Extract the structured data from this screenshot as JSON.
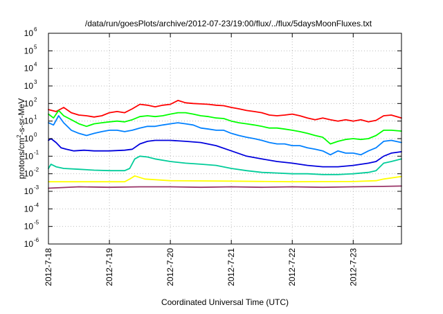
{
  "chart_data": {
    "type": "line",
    "title": "/data/run/goesPlots/archive/2012-07-23/19:00/flux/../flux/5daysMoonFluxes.txt",
    "xlabel": "Coordinated Universal Time (UTC)",
    "ylabel": {
      "prefix": "protons/cm",
      "exp": "2",
      "suffix": "-s-sr-MeV"
    },
    "x_ticks": [
      "2012-7-18",
      "2012-7-19",
      "2012-7-20",
      "2012-7-21",
      "2012-7-22",
      "2012-7-23"
    ],
    "xlim": [
      "2012-07-18T00:00",
      "2012-07-23T19:00"
    ],
    "y_ticks": [
      {
        "base": "10",
        "exp": "-6"
      },
      {
        "base": "10",
        "exp": "-5"
      },
      {
        "base": "10",
        "exp": "-4"
      },
      {
        "base": "10",
        "exp": "-3"
      },
      {
        "base": "10",
        "exp": "-2"
      },
      {
        "base": "10",
        "exp": "-1"
      },
      {
        "base": "10",
        "exp": "0"
      },
      {
        "base": "10",
        "exp": "1"
      },
      {
        "base": "10",
        "exp": "2"
      },
      {
        "base": "10",
        "exp": "3"
      },
      {
        "base": "10",
        "exp": "4"
      },
      {
        "base": "10",
        "exp": "5"
      },
      {
        "base": "10",
        "exp": "6"
      }
    ],
    "ylim": [
      1e-06,
      1000000.0
    ],
    "y_scale": "log",
    "grid": true,
    "legend": "none",
    "series": [
      {
        "color": "#ff0000",
        "points": [
          [
            "2012-07-18T00:00",
            45
          ],
          [
            "2012-07-18T03:00",
            35
          ],
          [
            "2012-07-18T06:00",
            60
          ],
          [
            "2012-07-18T09:00",
            30
          ],
          [
            "2012-07-18T12:00",
            22
          ],
          [
            "2012-07-18T15:00",
            20
          ],
          [
            "2012-07-18T18:00",
            17
          ],
          [
            "2012-07-18T21:00",
            20
          ],
          [
            "2012-07-19T00:00",
            30
          ],
          [
            "2012-07-19T03:00",
            35
          ],
          [
            "2012-07-19T06:00",
            30
          ],
          [
            "2012-07-19T09:00",
            50
          ],
          [
            "2012-07-19T12:00",
            90
          ],
          [
            "2012-07-19T15:00",
            80
          ],
          [
            "2012-07-19T18:00",
            65
          ],
          [
            "2012-07-19T21:00",
            80
          ],
          [
            "2012-07-20T00:00",
            90
          ],
          [
            "2012-07-20T03:00",
            150
          ],
          [
            "2012-07-20T06:00",
            110
          ],
          [
            "2012-07-20T09:00",
            100
          ],
          [
            "2012-07-20T12:00",
            95
          ],
          [
            "2012-07-20T15:00",
            90
          ],
          [
            "2012-07-20T18:00",
            80
          ],
          [
            "2012-07-20T21:00",
            75
          ],
          [
            "2012-07-21T00:00",
            60
          ],
          [
            "2012-07-21T03:00",
            50
          ],
          [
            "2012-07-21T06:00",
            40
          ],
          [
            "2012-07-21T09:00",
            35
          ],
          [
            "2012-07-21T12:00",
            30
          ],
          [
            "2012-07-21T15:00",
            22
          ],
          [
            "2012-07-21T18:00",
            20
          ],
          [
            "2012-07-21T21:00",
            22
          ],
          [
            "2012-07-22T00:00",
            25
          ],
          [
            "2012-07-22T03:00",
            20
          ],
          [
            "2012-07-22T06:00",
            15
          ],
          [
            "2012-07-22T09:00",
            12
          ],
          [
            "2012-07-22T12:00",
            15
          ],
          [
            "2012-07-22T15:00",
            12
          ],
          [
            "2012-07-22T18:00",
            10
          ],
          [
            "2012-07-22T21:00",
            12
          ],
          [
            "2012-07-23T00:00",
            10
          ],
          [
            "2012-07-23T03:00",
            12
          ],
          [
            "2012-07-23T06:00",
            9
          ],
          [
            "2012-07-23T09:00",
            11
          ],
          [
            "2012-07-23T12:00",
            20
          ],
          [
            "2012-07-23T15:00",
            22
          ],
          [
            "2012-07-23T19:00",
            15
          ]
        ]
      },
      {
        "color": "#00ff00",
        "points": [
          [
            "2012-07-18T00:00",
            25
          ],
          [
            "2012-07-18T02:00",
            15
          ],
          [
            "2012-07-18T04:00",
            40
          ],
          [
            "2012-07-18T06:00",
            20
          ],
          [
            "2012-07-18T09:00",
            12
          ],
          [
            "2012-07-18T12:00",
            7
          ],
          [
            "2012-07-18T15:00",
            5
          ],
          [
            "2012-07-18T18:00",
            7
          ],
          [
            "2012-07-18T21:00",
            8
          ],
          [
            "2012-07-19T00:00",
            9
          ],
          [
            "2012-07-19T03:00",
            10
          ],
          [
            "2012-07-19T06:00",
            9
          ],
          [
            "2012-07-19T09:00",
            12
          ],
          [
            "2012-07-19T12:00",
            18
          ],
          [
            "2012-07-19T15:00",
            20
          ],
          [
            "2012-07-19T18:00",
            18
          ],
          [
            "2012-07-19T21:00",
            20
          ],
          [
            "2012-07-20T00:00",
            25
          ],
          [
            "2012-07-20T03:00",
            30
          ],
          [
            "2012-07-20T06:00",
            30
          ],
          [
            "2012-07-20T09:00",
            25
          ],
          [
            "2012-07-20T12:00",
            20
          ],
          [
            "2012-07-20T15:00",
            18
          ],
          [
            "2012-07-20T18:00",
            15
          ],
          [
            "2012-07-20T21:00",
            14
          ],
          [
            "2012-07-21T00:00",
            10
          ],
          [
            "2012-07-21T03:00",
            8
          ],
          [
            "2012-07-21T06:00",
            7
          ],
          [
            "2012-07-21T09:00",
            6
          ],
          [
            "2012-07-21T12:00",
            5
          ],
          [
            "2012-07-21T15:00",
            4
          ],
          [
            "2012-07-21T18:00",
            4
          ],
          [
            "2012-07-21T21:00",
            3.5
          ],
          [
            "2012-07-22T00:00",
            3
          ],
          [
            "2012-07-22T03:00",
            2.5
          ],
          [
            "2012-07-22T06:00",
            2
          ],
          [
            "2012-07-22T09:00",
            1.5
          ],
          [
            "2012-07-22T12:00",
            1.2
          ],
          [
            "2012-07-22T15:00",
            0.5
          ],
          [
            "2012-07-22T18:00",
            0.7
          ],
          [
            "2012-07-22T21:00",
            0.9
          ],
          [
            "2012-07-23T00:00",
            1
          ],
          [
            "2012-07-23T03:00",
            0.9
          ],
          [
            "2012-07-23T06:00",
            1
          ],
          [
            "2012-07-23T09:00",
            1.5
          ],
          [
            "2012-07-23T12:00",
            3
          ],
          [
            "2012-07-23T15:00",
            3
          ],
          [
            "2012-07-23T19:00",
            2.7
          ]
        ]
      },
      {
        "color": "#0080ff",
        "points": [
          [
            "2012-07-18T00:00",
            8
          ],
          [
            "2012-07-18T02:00",
            6
          ],
          [
            "2012-07-18T04:00",
            20
          ],
          [
            "2012-07-18T06:00",
            8
          ],
          [
            "2012-07-18T09:00",
            3
          ],
          [
            "2012-07-18T12:00",
            2
          ],
          [
            "2012-07-18T15:00",
            1.5
          ],
          [
            "2012-07-18T18:00",
            2
          ],
          [
            "2012-07-18T21:00",
            2.5
          ],
          [
            "2012-07-19T00:00",
            3
          ],
          [
            "2012-07-19T03:00",
            3
          ],
          [
            "2012-07-19T06:00",
            2.5
          ],
          [
            "2012-07-19T09:00",
            3
          ],
          [
            "2012-07-19T12:00",
            4
          ],
          [
            "2012-07-19T15:00",
            5
          ],
          [
            "2012-07-19T18:00",
            5
          ],
          [
            "2012-07-19T21:00",
            6
          ],
          [
            "2012-07-20T00:00",
            7
          ],
          [
            "2012-07-20T03:00",
            8
          ],
          [
            "2012-07-20T06:00",
            7
          ],
          [
            "2012-07-20T09:00",
            6
          ],
          [
            "2012-07-20T12:00",
            4
          ],
          [
            "2012-07-20T15:00",
            3.5
          ],
          [
            "2012-07-20T18:00",
            3
          ],
          [
            "2012-07-20T21:00",
            3
          ],
          [
            "2012-07-21T00:00",
            2
          ],
          [
            "2012-07-21T03:00",
            1.5
          ],
          [
            "2012-07-21T06:00",
            1.2
          ],
          [
            "2012-07-21T09:00",
            1
          ],
          [
            "2012-07-21T12:00",
            0.8
          ],
          [
            "2012-07-21T15:00",
            0.6
          ],
          [
            "2012-07-21T18:00",
            0.5
          ],
          [
            "2012-07-21T21:00",
            0.5
          ],
          [
            "2012-07-22T00:00",
            0.4
          ],
          [
            "2012-07-22T03:00",
            0.4
          ],
          [
            "2012-07-22T06:00",
            0.3
          ],
          [
            "2012-07-22T09:00",
            0.25
          ],
          [
            "2012-07-22T12:00",
            0.2
          ],
          [
            "2012-07-22T15:00",
            0.12
          ],
          [
            "2012-07-22T18:00",
            0.2
          ],
          [
            "2012-07-22T21:00",
            0.15
          ],
          [
            "2012-07-23T00:00",
            0.15
          ],
          [
            "2012-07-23T03:00",
            0.12
          ],
          [
            "2012-07-23T06:00",
            0.2
          ],
          [
            "2012-07-23T09:00",
            0.3
          ],
          [
            "2012-07-23T12:00",
            0.7
          ],
          [
            "2012-07-23T15:00",
            0.8
          ],
          [
            "2012-07-23T19:00",
            0.6
          ]
        ]
      },
      {
        "color": "#0000dd",
        "points": [
          [
            "2012-07-18T00:00",
            0.8
          ],
          [
            "2012-07-18T01:00",
            1
          ],
          [
            "2012-07-18T03:00",
            0.6
          ],
          [
            "2012-07-18T05:00",
            0.3
          ],
          [
            "2012-07-18T07:00",
            0.25
          ],
          [
            "2012-07-18T10:00",
            0.2
          ],
          [
            "2012-07-18T14:00",
            0.22
          ],
          [
            "2012-07-18T18:00",
            0.2
          ],
          [
            "2012-07-19T00:00",
            0.2
          ],
          [
            "2012-07-19T06:00",
            0.22
          ],
          [
            "2012-07-19T09:00",
            0.25
          ],
          [
            "2012-07-19T12:00",
            0.5
          ],
          [
            "2012-07-19T15:00",
            0.7
          ],
          [
            "2012-07-19T18:00",
            0.8
          ],
          [
            "2012-07-20T00:00",
            0.8
          ],
          [
            "2012-07-20T06:00",
            0.7
          ],
          [
            "2012-07-20T12:00",
            0.6
          ],
          [
            "2012-07-20T18:00",
            0.4
          ],
          [
            "2012-07-21T00:00",
            0.2
          ],
          [
            "2012-07-21T06:00",
            0.1
          ],
          [
            "2012-07-21T12:00",
            0.07
          ],
          [
            "2012-07-21T18:00",
            0.05
          ],
          [
            "2012-07-22T00:00",
            0.04
          ],
          [
            "2012-07-22T06:00",
            0.03
          ],
          [
            "2012-07-22T12:00",
            0.025
          ],
          [
            "2012-07-22T18:00",
            0.025
          ],
          [
            "2012-07-23T00:00",
            0.03
          ],
          [
            "2012-07-23T06:00",
            0.04
          ],
          [
            "2012-07-23T09:00",
            0.05
          ],
          [
            "2012-07-23T12:00",
            0.1
          ],
          [
            "2012-07-23T15:00",
            0.15
          ],
          [
            "2012-07-23T19:00",
            0.18
          ]
        ]
      },
      {
        "color": "#00cc99",
        "points": [
          [
            "2012-07-18T00:00",
            0.02
          ],
          [
            "2012-07-18T01:00",
            0.035
          ],
          [
            "2012-07-18T03:00",
            0.025
          ],
          [
            "2012-07-18T06:00",
            0.02
          ],
          [
            "2012-07-18T12:00",
            0.018
          ],
          [
            "2012-07-18T18:00",
            0.016
          ],
          [
            "2012-07-19T00:00",
            0.015
          ],
          [
            "2012-07-19T06:00",
            0.015
          ],
          [
            "2012-07-19T08:00",
            0.02
          ],
          [
            "2012-07-19T10:00",
            0.07
          ],
          [
            "2012-07-19T12:00",
            0.1
          ],
          [
            "2012-07-19T15:00",
            0.09
          ],
          [
            "2012-07-19T18:00",
            0.07
          ],
          [
            "2012-07-20T00:00",
            0.05
          ],
          [
            "2012-07-20T06:00",
            0.04
          ],
          [
            "2012-07-20T12:00",
            0.035
          ],
          [
            "2012-07-20T18:00",
            0.03
          ],
          [
            "2012-07-21T00:00",
            0.02
          ],
          [
            "2012-07-21T06:00",
            0.015
          ],
          [
            "2012-07-21T12:00",
            0.012
          ],
          [
            "2012-07-21T18:00",
            0.011
          ],
          [
            "2012-07-22T00:00",
            0.01
          ],
          [
            "2012-07-22T06:00",
            0.01
          ],
          [
            "2012-07-22T12:00",
            0.009
          ],
          [
            "2012-07-22T18:00",
            0.009
          ],
          [
            "2012-07-23T00:00",
            0.01
          ],
          [
            "2012-07-23T06:00",
            0.012
          ],
          [
            "2012-07-23T09:00",
            0.015
          ],
          [
            "2012-07-23T12:00",
            0.04
          ],
          [
            "2012-07-23T15:00",
            0.05
          ],
          [
            "2012-07-23T19:00",
            0.07
          ]
        ]
      },
      {
        "color": "#ffff00",
        "points": [
          [
            "2012-07-18T00:00",
            0.0035
          ],
          [
            "2012-07-18T12:00",
            0.0035
          ],
          [
            "2012-07-19T00:00",
            0.0035
          ],
          [
            "2012-07-19T06:00",
            0.0035
          ],
          [
            "2012-07-19T08:00",
            0.005
          ],
          [
            "2012-07-19T10:00",
            0.0075
          ],
          [
            "2012-07-19T14:00",
            0.005
          ],
          [
            "2012-07-20T00:00",
            0.004
          ],
          [
            "2012-07-21T00:00",
            0.0038
          ],
          [
            "2012-07-22T00:00",
            0.0035
          ],
          [
            "2012-07-23T00:00",
            0.0036
          ],
          [
            "2012-07-23T09:00",
            0.004
          ],
          [
            "2012-07-23T12:00",
            0.005
          ],
          [
            "2012-07-23T19:00",
            0.007
          ]
        ]
      },
      {
        "color": "#993366",
        "points": [
          [
            "2012-07-18T00:00",
            0.0015
          ],
          [
            "2012-07-18T12:00",
            0.0018
          ],
          [
            "2012-07-19T00:00",
            0.0017
          ],
          [
            "2012-07-19T12:00",
            0.0018
          ],
          [
            "2012-07-20T00:00",
            0.0018
          ],
          [
            "2012-07-20T12:00",
            0.0017
          ],
          [
            "2012-07-21T00:00",
            0.0018
          ],
          [
            "2012-07-21T12:00",
            0.0017
          ],
          [
            "2012-07-22T00:00",
            0.0018
          ],
          [
            "2012-07-22T12:00",
            0.0017
          ],
          [
            "2012-07-23T00:00",
            0.0018
          ],
          [
            "2012-07-23T12:00",
            0.0019
          ],
          [
            "2012-07-23T19:00",
            0.002
          ]
        ]
      }
    ]
  }
}
